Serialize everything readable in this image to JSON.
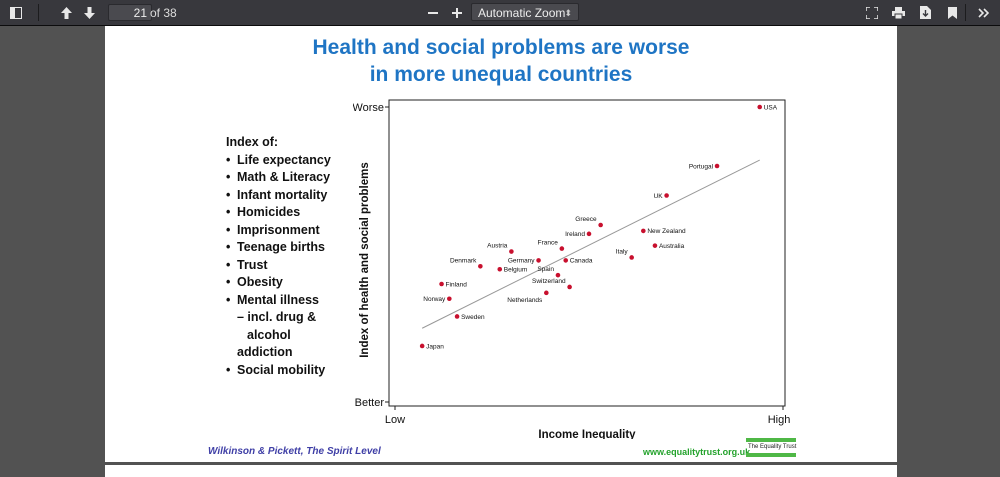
{
  "toolbar": {
    "page_number": "21",
    "page_count": "of 38",
    "zoom": "Automatic Zoom",
    "icons": [
      "sidebar-toggle-icon",
      "previous-page-icon",
      "next-page-icon",
      "zoom-out-icon",
      "zoom-in-icon",
      "presentation-mode-icon",
      "print-icon",
      "download-icon",
      "bookmark-icon",
      "tools-icon"
    ]
  },
  "slide": {
    "title_line1": "Health and social problems are worse",
    "title_line2": "in more unequal countries",
    "index_heading": "Index of:",
    "index_items": [
      "Life expectancy",
      "Math & Literacy",
      "Infant mortality",
      "Homicides",
      "Imprisonment",
      "Teenage births",
      "Trust",
      "Obesity",
      "Mental illness"
    ],
    "index_sub": [
      "– incl. drug &",
      "alcohol",
      "addiction"
    ],
    "index_last": "Social mobility",
    "citation": "Wilkinson & Pickett, The Spirit Level",
    "website": "www.equalitytrust.org.uk",
    "logo_text": "The Equality Trust",
    "colors": {
      "title": "#1f75c4",
      "point": "#c8102e",
      "citation": "#3f3fa6",
      "website": "#23a22b"
    }
  },
  "chart_data": {
    "type": "scatter",
    "title": "",
    "xlabel": "Income Inequality",
    "ylabel": "Index of health and social problems",
    "x_tick_labels": [
      "Low",
      "High"
    ],
    "y_tick_labels": [
      "Better",
      "Worse"
    ],
    "xlim": [
      0,
      100
    ],
    "ylim": [
      0,
      100
    ],
    "points": [
      {
        "label": "USA",
        "x": 94,
        "y": 100
      },
      {
        "label": "Portugal",
        "x": 83,
        "y": 80
      },
      {
        "label": "UK",
        "x": 70,
        "y": 70
      },
      {
        "label": "Greece",
        "x": 53,
        "y": 60
      },
      {
        "label": "Ireland",
        "x": 50,
        "y": 57
      },
      {
        "label": "New Zealand",
        "x": 64,
        "y": 58
      },
      {
        "label": "Australia",
        "x": 67,
        "y": 53
      },
      {
        "label": "Italy",
        "x": 61,
        "y": 49
      },
      {
        "label": "France",
        "x": 43,
        "y": 52
      },
      {
        "label": "Austria",
        "x": 30,
        "y": 51
      },
      {
        "label": "Germany",
        "x": 37,
        "y": 48
      },
      {
        "label": "Canada",
        "x": 44,
        "y": 48
      },
      {
        "label": "Denmark",
        "x": 22,
        "y": 46
      },
      {
        "label": "Belgium",
        "x": 27,
        "y": 45
      },
      {
        "label": "Spain",
        "x": 42,
        "y": 43
      },
      {
        "label": "Switzerland",
        "x": 45,
        "y": 39
      },
      {
        "label": "Netherlands",
        "x": 39,
        "y": 37
      },
      {
        "label": "Finland",
        "x": 12,
        "y": 40
      },
      {
        "label": "Norway",
        "x": 14,
        "y": 35
      },
      {
        "label": "Sweden",
        "x": 16,
        "y": 29
      },
      {
        "label": "Japan",
        "x": 7,
        "y": 19
      }
    ],
    "trendline": {
      "x": [
        7,
        94
      ],
      "y": [
        25,
        82
      ]
    },
    "grid": false,
    "legend": "none"
  }
}
